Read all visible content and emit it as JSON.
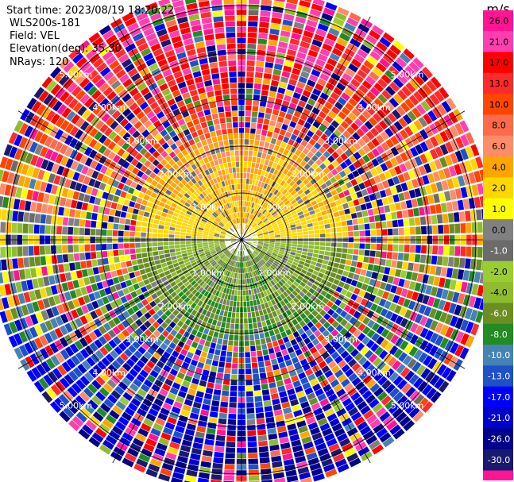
{
  "header": {
    "start_time": "Start time: 2023/08/19 18:20:22",
    "instrument": "WLS200s-181",
    "field": "Field: VEL",
    "elevation": "Elevation(deg): 35.30",
    "nrays": "NRays: 120"
  },
  "chart_data": {
    "type": "heatmap",
    "projection": "polar-ppi",
    "field": "VEL",
    "units": "m/s",
    "n_rays": 120,
    "elevation_deg": 35.3,
    "range_max_km": 5.5,
    "range_rings_km": [
      1,
      2,
      3,
      4,
      5
    ],
    "range_ring_labels": [
      "1.00km",
      "2.00km",
      "3.00km",
      "4.00km",
      "5.00km"
    ],
    "spoke_angles_deg": [
      0,
      30,
      60,
      90,
      120,
      150,
      180,
      210,
      240,
      270,
      300,
      330
    ],
    "colorbar": {
      "label": "m/s",
      "ticks": [
        "26.0",
        "21.0",
        "17.0",
        "13.0",
        "10.0",
        "8.0",
        "6.0",
        "4.0",
        "2.0",
        "1.0",
        "0.0",
        "-1.0",
        "-2.0",
        "-4.0",
        "-6.0",
        "-8.0",
        "-10.0",
        "-13.0",
        "-17.0",
        "-21.0",
        "-26.0",
        "-30.0"
      ],
      "bins": [
        {
          "lo": 26,
          "hi": 30,
          "color": "#ff1493"
        },
        {
          "lo": 21,
          "hi": 26,
          "color": "#ff3fb0"
        },
        {
          "lo": 17,
          "hi": 21,
          "color": "#ff0000"
        },
        {
          "lo": 13,
          "hi": 17,
          "color": "#ff2a2a"
        },
        {
          "lo": 10,
          "hi": 13,
          "color": "#ff4500"
        },
        {
          "lo": 8,
          "hi": 10,
          "color": "#ff6a4a"
        },
        {
          "lo": 6,
          "hi": 8,
          "color": "#ff8c69"
        },
        {
          "lo": 4,
          "hi": 6,
          "color": "#ffa500"
        },
        {
          "lo": 2,
          "hi": 4,
          "color": "#ffd700"
        },
        {
          "lo": 1,
          "hi": 2,
          "color": "#ffff00"
        },
        {
          "lo": 0,
          "hi": 1,
          "color": "#808080"
        },
        {
          "lo": -1,
          "hi": 0,
          "color": "#6b6b6b"
        },
        {
          "lo": -2,
          "hi": -1,
          "color": "#9acd32"
        },
        {
          "lo": -4,
          "hi": -2,
          "color": "#8fbc2f"
        },
        {
          "lo": -6,
          "hi": -4,
          "color": "#6b8e23"
        },
        {
          "lo": -8,
          "hi": -6,
          "color": "#228b22"
        },
        {
          "lo": -10,
          "hi": -8,
          "color": "#4682b4"
        },
        {
          "lo": -13,
          "hi": -10,
          "color": "#1e50c8"
        },
        {
          "lo": -17,
          "hi": -13,
          "color": "#0000ff"
        },
        {
          "lo": -21,
          "hi": -17,
          "color": "#0000cd"
        },
        {
          "lo": -26,
          "hi": -21,
          "color": "#00008b"
        },
        {
          "lo": -30,
          "hi": -26,
          "color": "#191970"
        }
      ]
    },
    "velocity_pattern": {
      "north_near_km_0_2": "2 to 6 m/s (yellow/orange)",
      "south_near_km_0_2": "-2 to -8 m/s (green)",
      "north_far_km_3_5": "17 to 30 m/s (red/pink)",
      "south_far_km_3_5": "-17 to -30 m/s (navy/blue)",
      "beyond_2_5_km": "noisy, mixed colors"
    }
  }
}
